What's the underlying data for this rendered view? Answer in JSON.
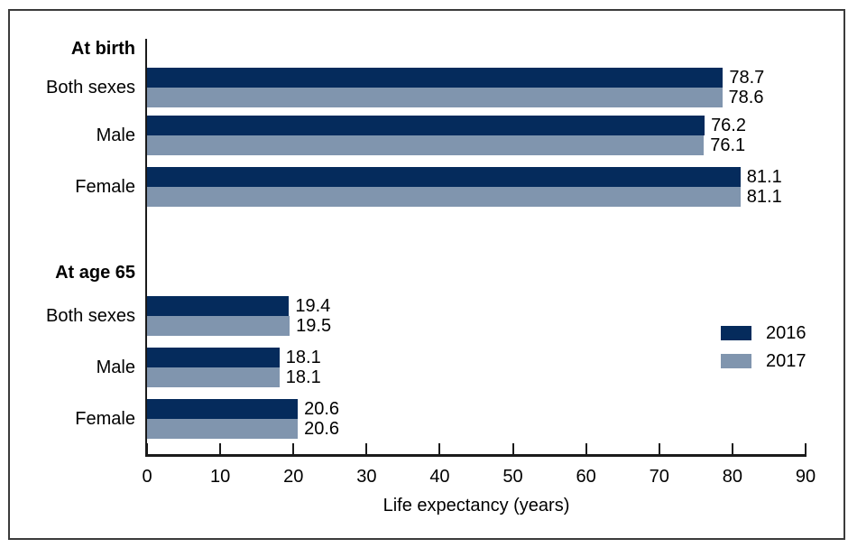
{
  "chart_data": {
    "type": "bar",
    "orientation": "horizontal",
    "title": "",
    "xlabel": "Life expectancy (years)",
    "ylabel": "",
    "xlim": [
      0,
      90
    ],
    "xticks": [
      0,
      10,
      20,
      30,
      40,
      50,
      60,
      70,
      80,
      90
    ],
    "grid": "off",
    "value_labels_shown": true,
    "legend_position": "right-middle",
    "categories": [
      "Both sexes",
      "Male",
      "Female",
      "Both sexes",
      "Male",
      "Female"
    ],
    "groups": [
      {
        "label": "At birth",
        "row_indexes": [
          0,
          1,
          2
        ]
      },
      {
        "label": "At age 65",
        "row_indexes": [
          3,
          4,
          5
        ]
      }
    ],
    "series": [
      {
        "name": "2016",
        "color": "#052b5c",
        "values": [
          78.7,
          76.2,
          81.1,
          19.4,
          18.1,
          20.6
        ]
      },
      {
        "name": "2017",
        "color": "#8095ae",
        "values": [
          78.6,
          76.1,
          81.1,
          19.5,
          18.1,
          20.6
        ]
      }
    ],
    "colors": {
      "frame_border": "#3b3b3b",
      "axis": "#1a1a1a",
      "text": "#000000",
      "background": "#ffffff"
    }
  }
}
